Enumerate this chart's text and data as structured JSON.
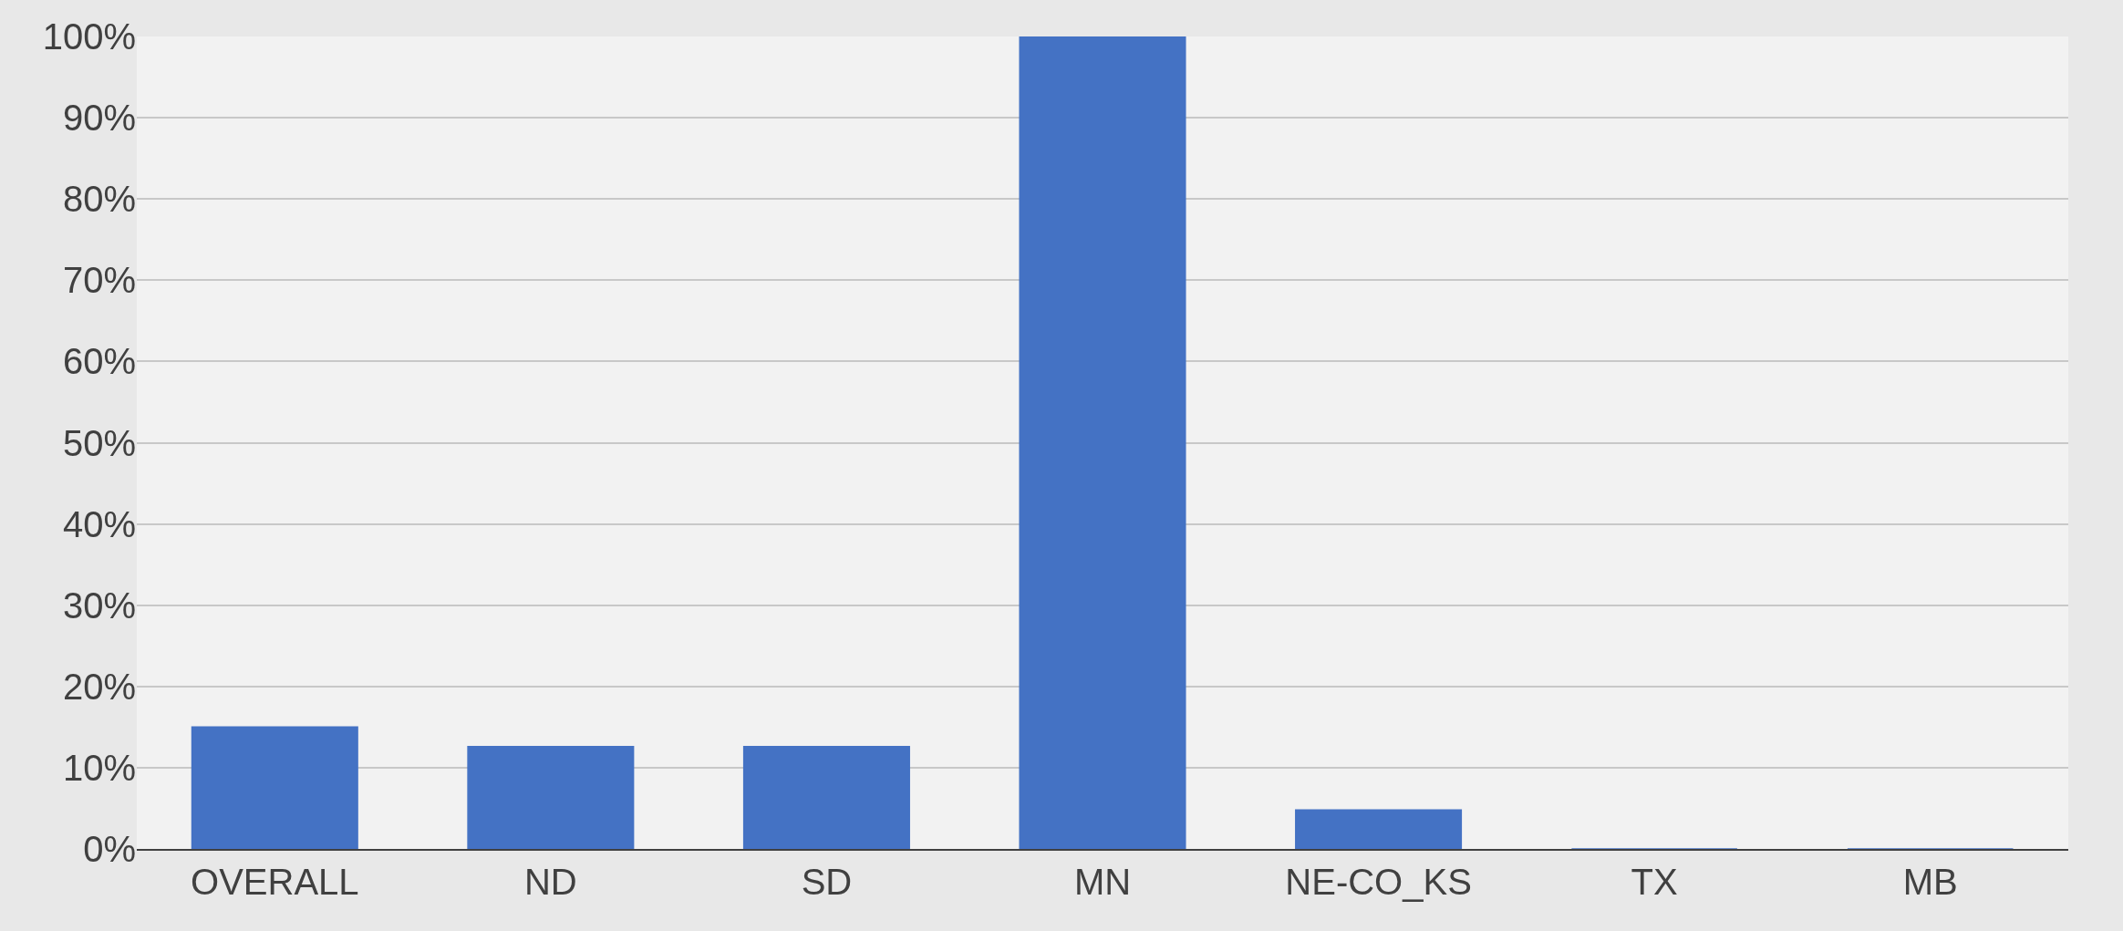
{
  "chart_data": {
    "type": "bar",
    "categories": [
      "OVERALL",
      "ND",
      "SD",
      "MN",
      "NE-CO_KS",
      "TX",
      "MB"
    ],
    "values": [
      15,
      12.6,
      12.6,
      100,
      4.8,
      0,
      0
    ],
    "color": "#4472c4",
    "ylim": [
      0,
      100
    ],
    "yticks": [
      {
        "value": 0,
        "label": "0%"
      },
      {
        "value": 10,
        "label": "10%"
      },
      {
        "value": 20,
        "label": "20%"
      },
      {
        "value": 30,
        "label": "30%"
      },
      {
        "value": 40,
        "label": "40%"
      },
      {
        "value": 50,
        "label": "50%"
      },
      {
        "value": 60,
        "label": "60%"
      },
      {
        "value": 70,
        "label": "70%"
      },
      {
        "value": 80,
        "label": "80%"
      },
      {
        "value": 90,
        "label": "90%"
      },
      {
        "value": 100,
        "label": "100%"
      }
    ],
    "grid": "y"
  }
}
